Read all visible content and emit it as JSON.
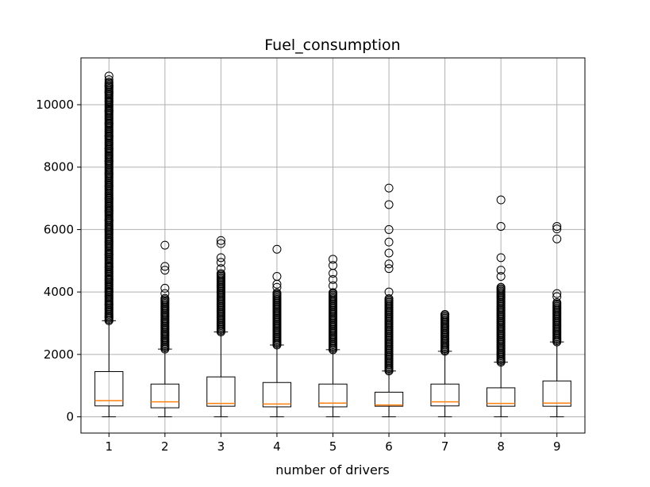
{
  "chart_data": {
    "type": "boxplot",
    "title": "Fuel_consumption",
    "xlabel": "number of drivers",
    "ylabel": "",
    "categories": [
      "1",
      "2",
      "3",
      "4",
      "5",
      "6",
      "7",
      "8",
      "9"
    ],
    "ylim": [
      -520,
      11500
    ],
    "yticks": [
      0,
      2000,
      4000,
      6000,
      8000,
      10000
    ],
    "ytick_labels": [
      "0",
      "2000",
      "4000",
      "6000",
      "8000",
      "10000"
    ],
    "grid": true,
    "colors": {
      "box": "#000000",
      "median": "#ff7f0e",
      "grid": "#b0b0b0"
    },
    "boxes": [
      {
        "category": "1",
        "whisker_low": 0,
        "q1": 350,
        "median": 520,
        "q3": 1450,
        "whisker_high": 3080,
        "outlier_range": [
          3080,
          10750
        ],
        "outliers": [
          3200,
          3600,
          4000,
          4400,
          4800,
          5200,
          5600,
          6000,
          6300,
          6600,
          7000,
          7400,
          7800,
          8200,
          8600,
          9000,
          9400,
          9800,
          10100,
          10400,
          10600,
          10800,
          10920
        ]
      },
      {
        "category": "2",
        "whisker_low": 0,
        "q1": 290,
        "median": 480,
        "q3": 1050,
        "whisker_high": 2170,
        "outlier_range": [
          2170,
          3800
        ],
        "outliers": [
          3950,
          4120,
          4700,
          4820,
          5500
        ]
      },
      {
        "category": "3",
        "whisker_low": 0,
        "q1": 340,
        "median": 430,
        "q3": 1280,
        "whisker_high": 2720,
        "outlier_range": [
          2720,
          4600
        ],
        "outliers": [
          4750,
          4950,
          5100,
          5550,
          5650
        ]
      },
      {
        "category": "4",
        "whisker_low": 0,
        "q1": 320,
        "median": 410,
        "q3": 1100,
        "whisker_high": 2300,
        "outlier_range": [
          2300,
          4000
        ],
        "outliers": [
          4150,
          4250,
          4500,
          5370
        ]
      },
      {
        "category": "5",
        "whisker_low": 0,
        "q1": 320,
        "median": 440,
        "q3": 1050,
        "whisker_high": 2150,
        "outlier_range": [
          2150,
          4000
        ],
        "outliers": [
          4200,
          4400,
          4600,
          4850,
          5050
        ]
      },
      {
        "category": "6",
        "whisker_low": 0,
        "q1": 340,
        "median": 380,
        "q3": 790,
        "whisker_high": 1470,
        "outlier_range": [
          1470,
          3800
        ],
        "outliers": [
          4000,
          4750,
          4900,
          5250,
          5600,
          6000,
          6800,
          7330
        ]
      },
      {
        "category": "7",
        "whisker_low": 0,
        "q1": 350,
        "median": 480,
        "q3": 1050,
        "whisker_high": 2100,
        "outlier_range": [
          2100,
          3300
        ],
        "outliers": [
          3280
        ]
      },
      {
        "category": "8",
        "whisker_low": 0,
        "q1": 340,
        "median": 430,
        "q3": 930,
        "whisker_high": 1750,
        "outlier_range": [
          1750,
          4150
        ],
        "outliers": [
          4500,
          4700,
          5100,
          6100,
          6950
        ]
      },
      {
        "category": "9",
        "whisker_low": 0,
        "q1": 340,
        "median": 440,
        "q3": 1150,
        "whisker_high": 2400,
        "outlier_range": [
          2400,
          3700
        ],
        "outliers": [
          3850,
          3950,
          5700,
          6020,
          6100
        ]
      }
    ]
  }
}
